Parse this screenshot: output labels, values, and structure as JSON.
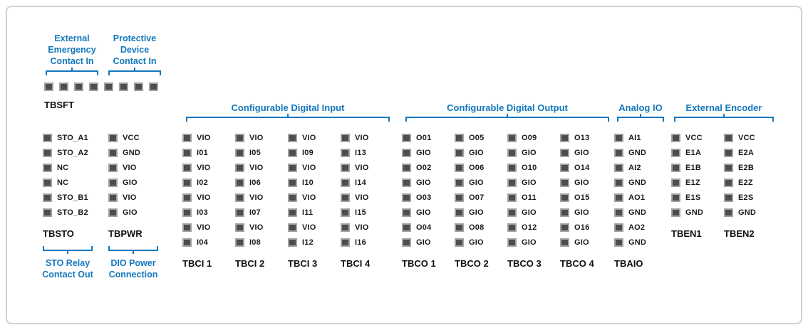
{
  "colors": {
    "accent_blue": "#1377bd",
    "pin_fill": "#4d4d4d",
    "pin_border": "#a3a3a3",
    "text_dark": "#1a1a1a",
    "frame_border": "#ccd2d6"
  },
  "safety": {
    "annotations": [
      {
        "label": "External\nEmergency\nContact In"
      },
      {
        "label": "Protective\nDevice\nContact In"
      }
    ],
    "pin_count": 8,
    "name": "TBSFT"
  },
  "left_blocks": [
    {
      "name": "TBSTO",
      "pins": [
        "STO_A1",
        "STO_A2",
        "NC",
        "NC",
        "STO_B1",
        "STO_B2"
      ],
      "annotation": "STO Relay\nContact Out"
    },
    {
      "name": "TBPWR",
      "pins": [
        "VCC",
        "GND",
        "VIO",
        "GIO",
        "VIO",
        "GIO"
      ],
      "annotation": "DIO Power\nConnection"
    }
  ],
  "groups": [
    {
      "header": "Configurable Digital Input",
      "blocks": [
        {
          "name": "TBCI 1",
          "pins": [
            "VIO",
            "I01",
            "VIO",
            "I02",
            "VIO",
            "I03",
            "VIO",
            "I04"
          ]
        },
        {
          "name": "TBCI 2",
          "pins": [
            "VIO",
            "I05",
            "VIO",
            "I06",
            "VIO",
            "I07",
            "VIO",
            "I08"
          ]
        },
        {
          "name": "TBCI 3",
          "pins": [
            "VIO",
            "I09",
            "VIO",
            "I10",
            "VIO",
            "I11",
            "VIO",
            "I12"
          ]
        },
        {
          "name": "TBCI 4",
          "pins": [
            "VIO",
            "I13",
            "VIO",
            "I14",
            "VIO",
            "I15",
            "VIO",
            "I16"
          ]
        }
      ]
    },
    {
      "header": "Configurable Digital Output",
      "blocks": [
        {
          "name": "TBCO 1",
          "pins": [
            "O01",
            "GIO",
            "O02",
            "GIO",
            "O03",
            "GIO",
            "O04",
            "GIO"
          ]
        },
        {
          "name": "TBCO 2",
          "pins": [
            "O05",
            "GIO",
            "O06",
            "GIO",
            "O07",
            "GIO",
            "O08",
            "GIO"
          ]
        },
        {
          "name": "TBCO 3",
          "pins": [
            "O09",
            "GIO",
            "O10",
            "GIO",
            "O11",
            "GIO",
            "O12",
            "GIO"
          ]
        },
        {
          "name": "TBCO 4",
          "pins": [
            "O13",
            "GIO",
            "O14",
            "GIO",
            "O15",
            "GIO",
            "O16",
            "GIO"
          ]
        }
      ]
    },
    {
      "header": "Analog IO",
      "blocks": [
        {
          "name": "TBAIO",
          "pins": [
            "AI1",
            "GND",
            "AI2",
            "GND",
            "AO1",
            "GND",
            "AO2",
            "GND"
          ]
        }
      ]
    },
    {
      "header": "External Encoder",
      "blocks": [
        {
          "name": "TBEN1",
          "pins": [
            "VCC",
            "E1A",
            "E1B",
            "E1Z",
            "E1S",
            "GND"
          ]
        },
        {
          "name": "TBEN2",
          "pins": [
            "VCC",
            "E2A",
            "E2B",
            "E2Z",
            "E2S",
            "GND"
          ]
        }
      ]
    }
  ]
}
